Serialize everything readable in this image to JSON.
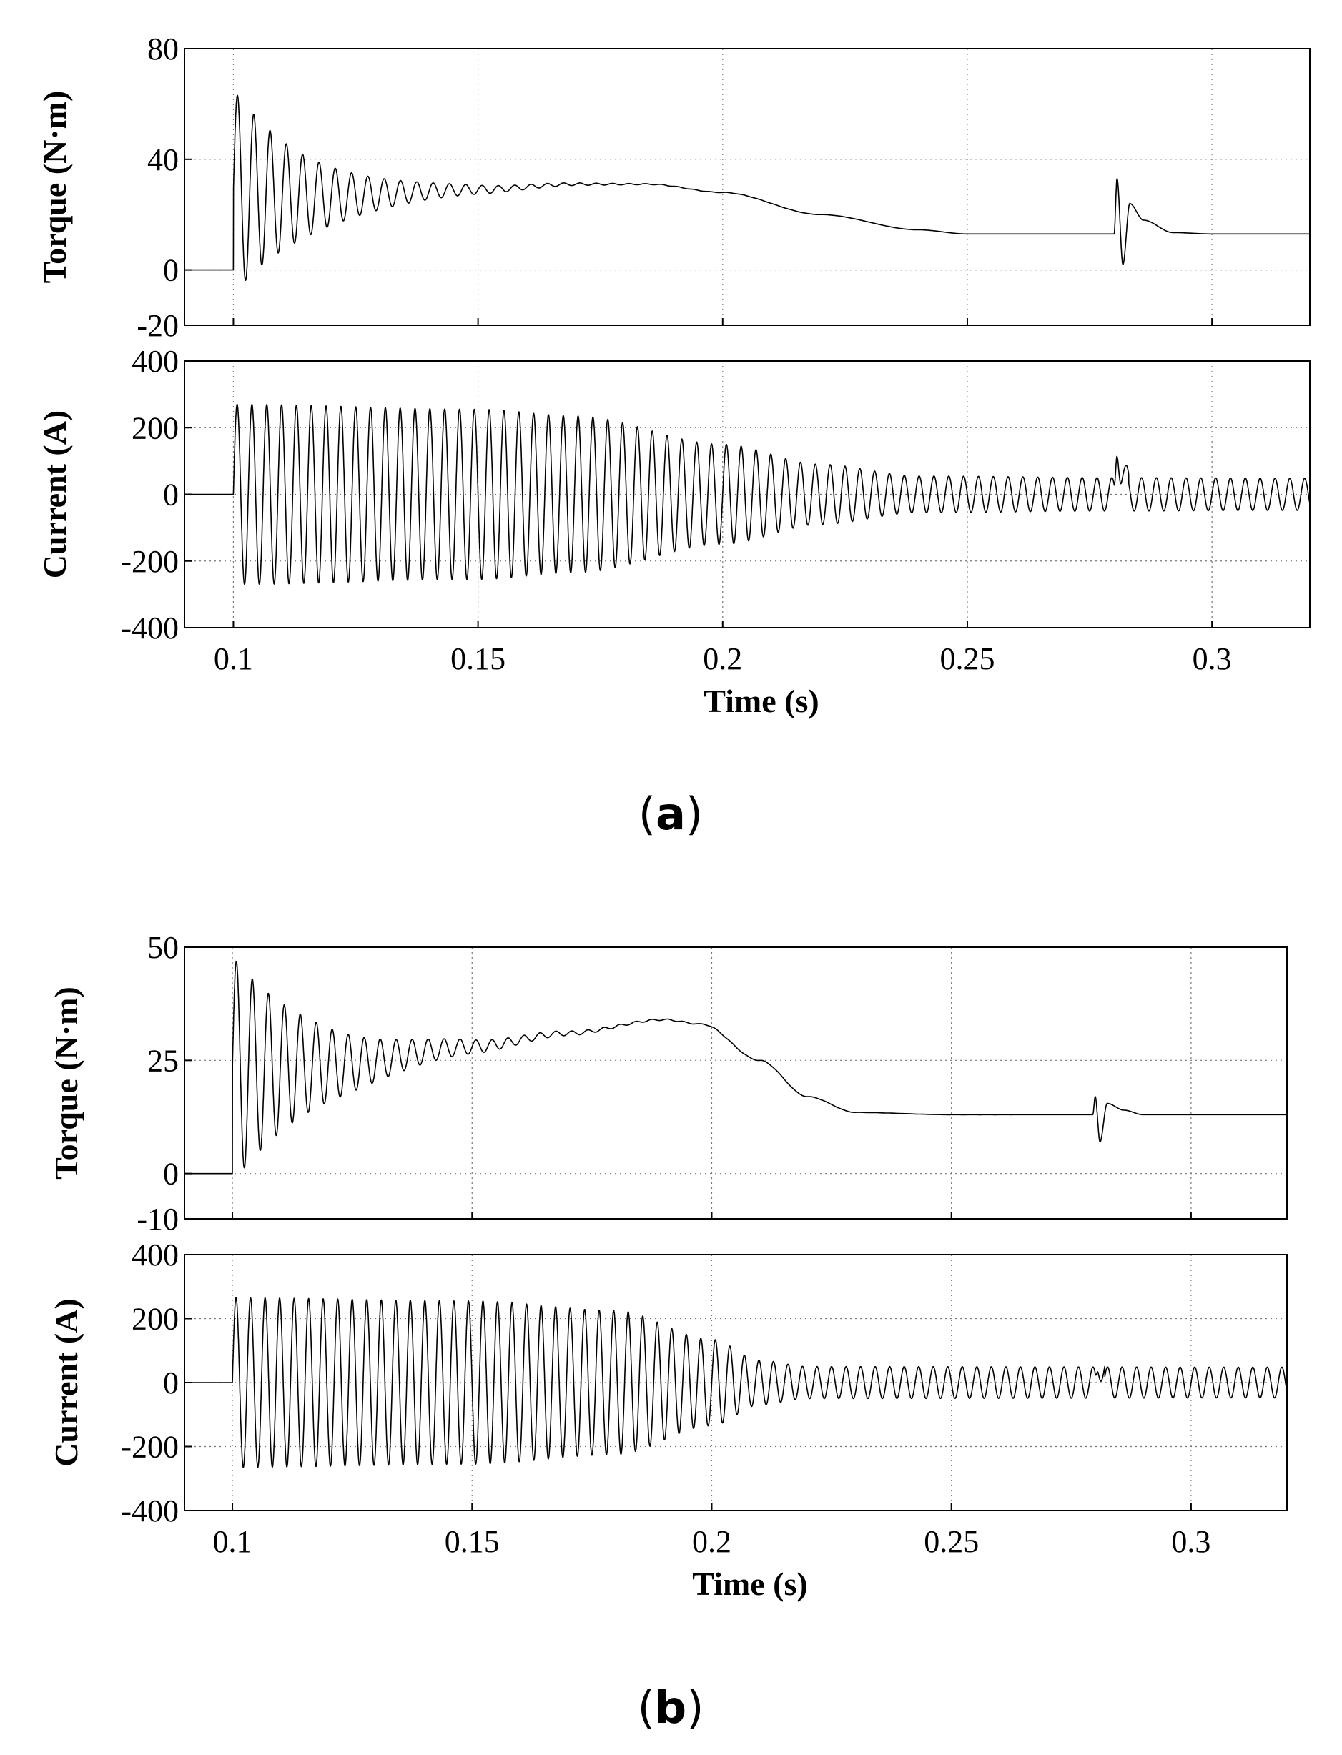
{
  "panels": [
    {
      "caption": {
        "open": "(",
        "letter": "a",
        "close": ")"
      },
      "chart_data": [
        {
          "type": "line",
          "title": "",
          "xlabel": "",
          "ylabel": "Torque (N·m)",
          "xlim": [
            0.09,
            0.32
          ],
          "ylim": [
            -20,
            80
          ],
          "xticks": [
            0.1,
            0.15,
            0.2,
            0.25,
            0.3
          ],
          "xtick_labels": [
            "",
            "",
            "",
            "",
            ""
          ],
          "yticks": [
            -20,
            0,
            40,
            80
          ],
          "ytick_labels": [
            "-20",
            "0",
            "40",
            "80"
          ],
          "grid": true,
          "series": [
            {
              "name": "Torque",
              "start": 0.1,
              "initial": 0,
              "oscillation": {
                "freq_hz": 300,
                "amp0": 37,
                "decay_s": 0.016
              },
              "envelope": [
                [
                  0.1,
                  28
                ],
                [
                  0.115,
                  26.5
                ],
                [
                  0.15,
                  29
                ],
                [
                  0.17,
                  31
                ],
                [
                  0.185,
                  31
                ],
                [
                  0.2,
                  28
                ],
                [
                  0.22,
                  20
                ],
                [
                  0.24,
                  14.5
                ],
                [
                  0.25,
                  13
                ],
                [
                  0.32,
                  13
                ]
              ],
              "disturbance": {
                "t": 0.28,
                "values": [
                  [
                    0.28,
                    13
                  ],
                  [
                    0.2806,
                    33
                  ],
                  [
                    0.2818,
                    2
                  ],
                  [
                    0.2832,
                    24
                  ],
                  [
                    0.286,
                    18
                  ],
                  [
                    0.292,
                    13.5
                  ],
                  [
                    0.3,
                    13
                  ]
                ]
              }
            }
          ]
        },
        {
          "type": "line",
          "title": "",
          "xlabel": "Time (s)",
          "ylabel": "Current (A)",
          "xlim": [
            0.09,
            0.32
          ],
          "ylim": [
            -400,
            400
          ],
          "xticks": [
            0.1,
            0.15,
            0.2,
            0.25,
            0.3
          ],
          "xtick_labels": [
            "0.1",
            "0.15",
            "0.2",
            "0.25",
            "0.3"
          ],
          "yticks": [
            -400,
            -200,
            0,
            200,
            400
          ],
          "ytick_labels": [
            "-400",
            "-200",
            "0",
            "200",
            "400"
          ],
          "grid": true,
          "series": [
            {
              "name": "Current",
              "start": 0.1,
              "initial": 0,
              "freq_hz": 330,
              "amplitude_envelope": [
                [
                  0.1,
                  270
                ],
                [
                  0.15,
                  255
                ],
                [
                  0.17,
                  235
                ],
                [
                  0.2,
                  150
                ],
                [
                  0.22,
                  90
                ],
                [
                  0.24,
                  55
                ],
                [
                  0.28,
                  50
                ],
                [
                  0.32,
                  48
                ]
              ],
              "disturbance": {
                "t": 0.28,
                "values": [
                  [
                    0.28,
                    0
                  ],
                  [
                    0.2806,
                    150
                  ],
                  [
                    0.2815,
                    80
                  ],
                  [
                    0.283,
                    60
                  ]
                ]
              }
            }
          ]
        }
      ]
    },
    {
      "caption": {
        "open": "(",
        "letter": "b",
        "close": ")"
      },
      "chart_data": [
        {
          "type": "line",
          "title": "",
          "xlabel": "",
          "ylabel": "Torque (N·m)",
          "xlim": [
            0.09,
            0.32
          ],
          "ylim": [
            -10,
            50
          ],
          "xticks": [
            0.1,
            0.15,
            0.2,
            0.25,
            0.3
          ],
          "xtick_labels": [
            "",
            "",
            "",
            "",
            ""
          ],
          "yticks": [
            -10,
            0,
            25,
            50
          ],
          "ytick_labels": [
            "-10",
            "0",
            "25",
            "50"
          ],
          "grid": true,
          "series": [
            {
              "name": "Torque",
              "start": 0.1,
              "initial": 0,
              "oscillation": {
                "freq_hz": 300,
                "amp0": 25,
                "decay_s": 0.018
              },
              "envelope": [
                [
                  0.1,
                  23
                ],
                [
                  0.12,
                  24
                ],
                [
                  0.15,
                  28
                ],
                [
                  0.17,
                  31
                ],
                [
                  0.19,
                  34
                ],
                [
                  0.198,
                  33
                ],
                [
                  0.21,
                  25
                ],
                [
                  0.22,
                  17
                ],
                [
                  0.23,
                  13.5
                ],
                [
                  0.25,
                  13
                ],
                [
                  0.32,
                  13
                ]
              ],
              "disturbance": {
                "t": 0.28,
                "values": [
                  [
                    0.2795,
                    13
                  ],
                  [
                    0.28,
                    17
                  ],
                  [
                    0.281,
                    7
                  ],
                  [
                    0.2825,
                    15.5
                  ],
                  [
                    0.286,
                    14
                  ],
                  [
                    0.29,
                    13
                  ]
                ]
              }
            }
          ]
        },
        {
          "type": "line",
          "title": "",
          "xlabel": "Time (s)",
          "ylabel": "Current (A)",
          "xlim": [
            0.09,
            0.32
          ],
          "ylim": [
            -400,
            400
          ],
          "xticks": [
            0.1,
            0.15,
            0.2,
            0.25,
            0.3
          ],
          "xtick_labels": [
            "0.1",
            "0.15",
            "0.2",
            "0.25",
            "0.3"
          ],
          "yticks": [
            -400,
            -200,
            0,
            200,
            400
          ],
          "ytick_labels": [
            "-400",
            "-200",
            "0",
            "200",
            "400"
          ],
          "grid": true,
          "series": [
            {
              "name": "Current",
              "start": 0.1,
              "initial": 0,
              "freq_hz": 330,
              "amplitude_envelope": [
                [
                  0.1,
                  265
                ],
                [
                  0.15,
                  255
                ],
                [
                  0.18,
                  225
                ],
                [
                  0.2,
                  135
                ],
                [
                  0.21,
                  70
                ],
                [
                  0.22,
                  50
                ],
                [
                  0.32,
                  48
                ]
              ],
              "disturbance": {
                "t": 0.28,
                "values": [
                  [
                    0.28,
                    0
                  ],
                  [
                    0.2806,
                    62
                  ],
                  [
                    0.282,
                    48
                  ]
                ]
              }
            }
          ]
        }
      ]
    }
  ]
}
